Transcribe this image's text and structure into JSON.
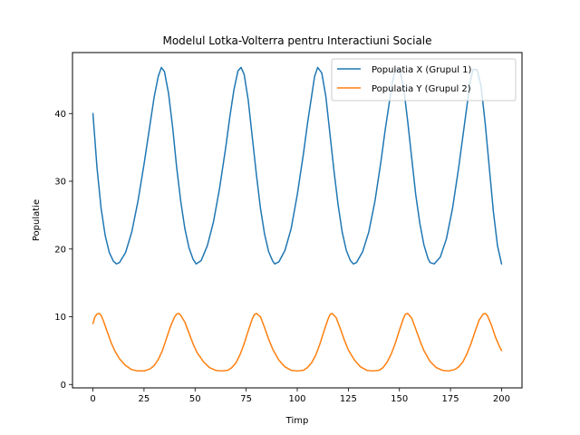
{
  "chart_data": {
    "type": "line",
    "title": "Modelul Lotka-Volterra pentru Interactiuni Sociale",
    "xlabel": "Timp",
    "ylabel": "Populatie",
    "xlim": [
      -10,
      210
    ],
    "ylim": [
      -0.5,
      49
    ],
    "xticks": [
      0,
      25,
      50,
      75,
      100,
      125,
      150,
      175,
      200
    ],
    "yticks": [
      0,
      10,
      20,
      30,
      40
    ],
    "grid": false,
    "legend_position": "top-right",
    "series": [
      {
        "name": "Populatia X (Grupul 1)",
        "color": "#1f77b4",
        "x": [
          0,
          2,
          4,
          6,
          8,
          10,
          11.5,
          13,
          16,
          19,
          22,
          25,
          28,
          30,
          32,
          33.5,
          35,
          37,
          39,
          41,
          43,
          45,
          47,
          49,
          50.5,
          53,
          56,
          59,
          62,
          65,
          67,
          69,
          71,
          72.5,
          74,
          76,
          78,
          80,
          82,
          84,
          86,
          88,
          89,
          91,
          94,
          97,
          100,
          103,
          105,
          107,
          108.5,
          110,
          112,
          114,
          116,
          118,
          120,
          122,
          124,
          126,
          127.5,
          129,
          132,
          135,
          138,
          141,
          143,
          145,
          146.5,
          148,
          150,
          152,
          154,
          156,
          158,
          160,
          162,
          164,
          165,
          167,
          170,
          173,
          176,
          179,
          181,
          183,
          184.5,
          186,
          188,
          190,
          192,
          194,
          196,
          198,
          200
        ],
        "y": [
          40,
          32,
          26,
          22,
          19.5,
          18.2,
          17.8,
          18.0,
          19.5,
          22.5,
          27,
          32.5,
          38.5,
          42.5,
          45.5,
          46.8,
          46.2,
          43,
          38,
          32,
          27,
          23,
          20.2,
          18.5,
          17.8,
          18.3,
          20.5,
          24,
          29,
          35,
          39.5,
          43.5,
          46.3,
          46.8,
          45.8,
          42,
          36.5,
          31,
          26,
          22.2,
          19.6,
          18.2,
          17.8,
          18.1,
          19.8,
          23,
          28,
          34,
          38.5,
          42.5,
          45.5,
          46.8,
          46,
          42.5,
          37,
          31.5,
          26.5,
          22.5,
          19.8,
          18.3,
          17.8,
          18.0,
          19.6,
          22.5,
          27,
          33,
          37.5,
          41.5,
          44.5,
          46.5,
          46.5,
          44,
          39,
          33.5,
          28,
          23.8,
          20.6,
          18.6,
          18.0,
          17.8,
          18.8,
          21.5,
          26,
          32,
          36.5,
          41,
          44.5,
          46.5,
          46.5,
          44,
          38.5,
          32,
          25.5,
          20.5,
          17.8
        ]
      },
      {
        "name": "Populatia Y (Grupul 2)",
        "color": "#ff7f0e",
        "x": [
          0,
          1,
          2,
          3,
          4,
          5,
          7,
          9,
          11,
          13,
          16,
          19,
          22,
          25,
          28,
          30,
          32,
          34,
          36,
          38,
          40,
          41,
          42,
          43,
          45,
          47,
          49,
          51,
          54,
          57,
          60,
          63,
          66,
          68,
          70,
          72,
          74,
          76,
          78,
          79,
          80,
          82,
          84,
          86,
          88,
          91,
          94,
          97,
          100,
          103,
          105,
          107,
          109,
          111,
          113,
          115,
          116,
          117,
          119,
          121,
          123,
          125,
          128,
          131,
          134,
          137,
          140,
          142,
          144,
          146,
          148,
          150,
          152,
          153,
          154,
          156,
          158,
          160,
          162,
          165,
          168,
          171,
          174,
          177,
          179,
          181,
          183,
          185,
          187,
          189,
          191,
          192,
          193,
          195,
          197,
          199,
          200
        ],
        "y": [
          9,
          10,
          10.4,
          10.5,
          10.2,
          9.5,
          7.8,
          6.1,
          4.8,
          3.8,
          2.8,
          2.2,
          2.0,
          2.0,
          2.3,
          2.8,
          3.7,
          5.0,
          6.8,
          8.6,
          10.0,
          10.4,
          10.5,
          10.2,
          9.2,
          7.6,
          6.0,
          4.7,
          3.4,
          2.5,
          2.1,
          2.0,
          2.1,
          2.5,
          3.2,
          4.4,
          6.0,
          7.9,
          9.7,
          10.3,
          10.5,
          10.0,
          8.4,
          6.7,
          5.2,
          3.6,
          2.6,
          2.1,
          2.0,
          2.1,
          2.5,
          3.2,
          4.3,
          5.9,
          7.8,
          9.6,
          10.3,
          10.5,
          9.9,
          8.3,
          6.6,
          5.1,
          3.6,
          2.6,
          2.1,
          2.0,
          2.1,
          2.5,
          3.3,
          4.5,
          6.1,
          8.0,
          9.8,
          10.4,
          10.5,
          9.8,
          8.2,
          6.5,
          5.0,
          3.4,
          2.5,
          2.1,
          2.0,
          2.2,
          2.6,
          3.3,
          4.5,
          6.0,
          7.8,
          9.5,
          10.4,
          10.5,
          10.2,
          8.8,
          7.0,
          5.6,
          5.0
        ]
      }
    ]
  }
}
